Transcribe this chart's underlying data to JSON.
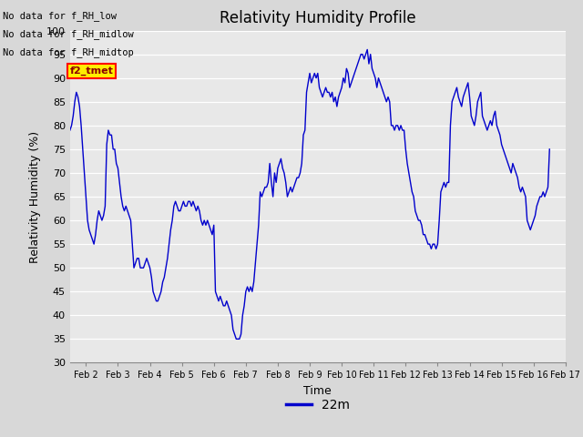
{
  "title": "Relativity Humidity Profile",
  "ylabel": "Relativity Humidity (%)",
  "xlabel": "Time",
  "legend_label": "22m",
  "no_data_texts": [
    "No data for f_RH_low",
    "No data for f_RH_midlow",
    "No data for f_RH_midtop"
  ],
  "legend_box_label": "f2_tmet",
  "ylim": [
    30,
    100
  ],
  "yticks": [
    30,
    35,
    40,
    45,
    50,
    55,
    60,
    65,
    70,
    75,
    80,
    85,
    90,
    95,
    100
  ],
  "line_color": "#0000cc",
  "background_color": "#d8d8d8",
  "plot_bg_color": "#e8e8e8",
  "x_ticks": [
    2,
    3,
    4,
    5,
    6,
    7,
    8,
    9,
    10,
    11,
    12,
    13,
    14,
    15,
    16,
    17
  ],
  "x_tick_labels": [
    "Feb 2",
    "Feb 3",
    "Feb 4",
    "Feb 5",
    "Feb 6",
    "Feb 7",
    "Feb 8",
    "Feb 9",
    "Feb 10",
    "Feb 11",
    "Feb 12",
    "Feb 13",
    "Feb 14",
    "Feb 15",
    "Feb 16",
    "Feb 17"
  ],
  "x_data": [
    1.5,
    1.55,
    1.6,
    1.65,
    1.7,
    1.75,
    1.8,
    1.85,
    1.9,
    1.95,
    2.0,
    2.05,
    2.1,
    2.15,
    2.2,
    2.25,
    2.3,
    2.35,
    2.4,
    2.45,
    2.5,
    2.55,
    2.6,
    2.65,
    2.7,
    2.75,
    2.8,
    2.85,
    2.9,
    2.95,
    3.0,
    3.05,
    3.1,
    3.15,
    3.2,
    3.25,
    3.3,
    3.35,
    3.4,
    3.45,
    3.5,
    3.55,
    3.6,
    3.65,
    3.7,
    3.75,
    3.8,
    3.85,
    3.9,
    3.95,
    4.0,
    4.05,
    4.1,
    4.15,
    4.2,
    4.25,
    4.3,
    4.35,
    4.4,
    4.45,
    4.5,
    4.55,
    4.6,
    4.65,
    4.7,
    4.75,
    4.8,
    4.85,
    4.9,
    4.95,
    5.0,
    5.05,
    5.1,
    5.15,
    5.2,
    5.25,
    5.3,
    5.35,
    5.4,
    5.45,
    5.5,
    5.55,
    5.6,
    5.65,
    5.7,
    5.75,
    5.8,
    5.85,
    5.9,
    5.95,
    6.0,
    6.05,
    6.1,
    6.15,
    6.2,
    6.25,
    6.3,
    6.35,
    6.4,
    6.45,
    6.5,
    6.55,
    6.6,
    6.65,
    6.7,
    6.75,
    6.8,
    6.85,
    6.9,
    6.95,
    7.0,
    7.05,
    7.1,
    7.15,
    7.2,
    7.25,
    7.3,
    7.35,
    7.4,
    7.45,
    7.5,
    7.55,
    7.6,
    7.65,
    7.7,
    7.75,
    7.8,
    7.85,
    7.9,
    7.95,
    8.0,
    8.05,
    8.1,
    8.15,
    8.2,
    8.25,
    8.3,
    8.35,
    8.4,
    8.45,
    8.5,
    8.55,
    8.6,
    8.65,
    8.7,
    8.75,
    8.8,
    8.85,
    8.9,
    8.95,
    9.0,
    9.05,
    9.1,
    9.15,
    9.2,
    9.25,
    9.3,
    9.35,
    9.4,
    9.45,
    9.5,
    9.55,
    9.6,
    9.65,
    9.7,
    9.75,
    9.8,
    9.85,
    9.9,
    9.95,
    10.0,
    10.05,
    10.1,
    10.15,
    10.2,
    10.25,
    10.3,
    10.35,
    10.4,
    10.45,
    10.5,
    10.55,
    10.6,
    10.65,
    10.7,
    10.75,
    10.8,
    10.85,
    10.9,
    10.95,
    11.0,
    11.05,
    11.1,
    11.15,
    11.2,
    11.25,
    11.3,
    11.35,
    11.4,
    11.45,
    11.5,
    11.55,
    11.6,
    11.65,
    11.7,
    11.75,
    11.8,
    11.85,
    11.9,
    11.95,
    12.0,
    12.05,
    12.1,
    12.15,
    12.2,
    12.25,
    12.3,
    12.35,
    12.4,
    12.45,
    12.5,
    12.55,
    12.6,
    12.65,
    12.7,
    12.75,
    12.8,
    12.85,
    12.9,
    12.95,
    13.0,
    13.05,
    13.1,
    13.15,
    13.2,
    13.25,
    13.3,
    13.35,
    13.4,
    13.45,
    13.5,
    13.55,
    13.6,
    13.65,
    13.7,
    13.75,
    13.8,
    13.85,
    13.9,
    13.95,
    14.0,
    14.05,
    14.1,
    14.15,
    14.2,
    14.25,
    14.3,
    14.35,
    14.4,
    14.45,
    14.5,
    14.55,
    14.6,
    14.65,
    14.7,
    14.75,
    14.8,
    14.85,
    14.9,
    14.95,
    15.0,
    15.05,
    15.1,
    15.15,
    15.2,
    15.25,
    15.3,
    15.35,
    15.4,
    15.45,
    15.5,
    15.55,
    15.6,
    15.65,
    15.7,
    15.75,
    15.8,
    15.85,
    15.9,
    15.95,
    16.0,
    16.05,
    16.1,
    16.15,
    16.2,
    16.25,
    16.3,
    16.35,
    16.4,
    16.45,
    16.5
  ],
  "y_data": [
    79,
    80,
    82,
    85,
    87,
    86,
    84,
    80,
    75,
    70,
    65,
    60,
    58,
    57,
    56,
    55,
    57,
    60,
    62,
    61,
    60,
    61,
    63,
    76,
    79,
    78,
    78,
    75,
    75,
    72,
    71,
    68,
    65,
    63,
    62,
    63,
    62,
    61,
    60,
    55,
    50,
    51,
    52,
    52,
    50,
    50,
    50,
    51,
    52,
    51,
    50,
    48,
    45,
    44,
    43,
    43,
    44,
    45,
    47,
    48,
    50,
    52,
    55,
    58,
    60,
    63,
    64,
    63,
    62,
    62,
    63,
    64,
    63,
    63,
    64,
    64,
    63,
    64,
    63,
    62,
    63,
    62,
    60,
    59,
    60,
    59,
    60,
    59,
    58,
    57,
    59,
    45,
    44,
    43,
    44,
    43,
    42,
    42,
    43,
    42,
    41,
    40,
    37,
    36,
    35,
    35,
    35,
    36,
    40,
    42,
    45,
    46,
    45,
    46,
    45,
    47,
    51,
    55,
    59,
    66,
    65,
    66,
    67,
    67,
    68,
    72,
    68,
    65,
    70,
    68,
    71,
    72,
    73,
    71,
    70,
    68,
    65,
    66,
    67,
    66,
    67,
    68,
    69,
    69,
    70,
    72,
    78,
    79,
    87,
    89,
    91,
    89,
    90,
    91,
    90,
    91,
    88,
    87,
    86,
    87,
    88,
    87,
    87,
    86,
    87,
    85,
    86,
    84,
    86,
    87,
    88,
    90,
    89,
    92,
    91,
    88,
    89,
    90,
    91,
    92,
    93,
    94,
    95,
    95,
    94,
    95,
    96,
    93,
    95,
    92,
    91,
    90,
    88,
    90,
    89,
    88,
    87,
    86,
    85,
    86,
    85,
    80,
    80,
    79,
    80,
    80,
    79,
    80,
    79,
    79,
    75,
    72,
    70,
    68,
    66,
    65,
    62,
    61,
    60,
    60,
    59,
    57,
    57,
    56,
    55,
    55,
    54,
    55,
    55,
    54,
    55,
    60,
    66,
    67,
    68,
    67,
    68,
    68,
    80,
    85,
    86,
    87,
    88,
    86,
    85,
    84,
    86,
    87,
    88,
    89,
    86,
    82,
    81,
    80,
    82,
    85,
    86,
    87,
    82,
    81,
    80,
    79,
    80,
    81,
    80,
    82,
    83,
    80,
    79,
    78,
    76,
    75,
    74,
    73,
    72,
    71,
    70,
    72,
    71,
    70,
    69,
    67,
    66,
    67,
    66,
    65,
    60,
    59,
    58,
    59,
    60,
    61,
    63,
    64,
    65,
    65,
    66,
    65,
    66,
    67,
    75
  ]
}
